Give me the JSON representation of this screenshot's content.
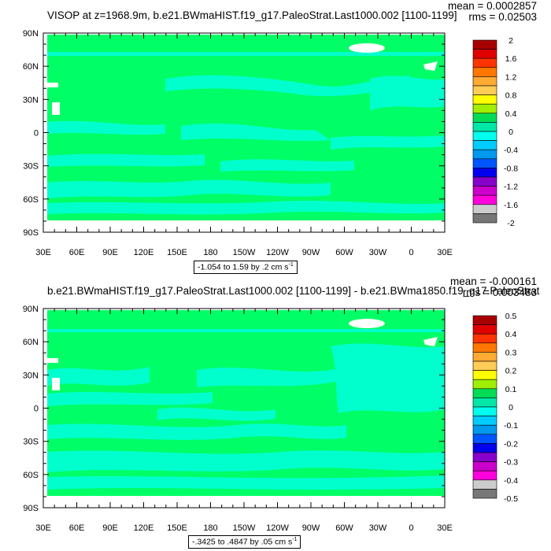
{
  "panels": [
    {
      "title": "VISOP at z=1968.9m, b.e21.BWmaHIST.f19_g17.PaleoStrat.Last1000.002 [1100-1199]",
      "mean_text": "mean = 0.0002857",
      "rms_text": "rms = 0.02503",
      "range_text": "-1.054 to 1.59 by .2 cm s",
      "range_sup": "-1",
      "colorbar_labels": [
        "2",
        "1.6",
        "1.2",
        "0.8",
        "0.4",
        "0",
        "-0.4",
        "-0.8",
        "-1.2",
        "-1.6",
        "-2"
      ]
    },
    {
      "title": "b.e21.BWmaHIST.f19_g17.PaleoStrat.Last1000.002 [1100-1199] - b.e21.BWma1850.f19_g17.PaleoStrat",
      "mean_text": "mean = -0.000161",
      "rms_text": "rms = 0.003483",
      "range_text": "-.3425 to .4847 by .05 cm s",
      "range_sup": "-1",
      "colorbar_labels": [
        "0.5",
        "0.4",
        "0.3",
        "0.2",
        "0.1",
        "0",
        "-0.1",
        "-0.2",
        "-0.3",
        "-0.4",
        "-0.5"
      ]
    }
  ],
  "lat_labels": [
    "90N",
    "60N",
    "30N",
    "0",
    "30S",
    "60S",
    "90S"
  ],
  "lon_labels": [
    "30E",
    "60E",
    "90E",
    "120E",
    "150E",
    "180",
    "150W",
    "120W",
    "90W",
    "60W",
    "30W",
    "0",
    "30E"
  ],
  "colorbar_colors": [
    "#a80000",
    "#e00000",
    "#ff3300",
    "#ff7700",
    "#ffaa33",
    "#ffcc55",
    "#ffff00",
    "#a0ee00",
    "#00dd55",
    "#00e8a8",
    "#00ffee",
    "#00ccff",
    "#0099ee",
    "#0055ff",
    "#0000ee",
    "#8800cc",
    "#cc00cc",
    "#ff00dd",
    "#cccccc",
    "#777777"
  ],
  "field_colors": {
    "ocean_main": "#00ff66",
    "ocean_alt": "#00ffcc",
    "no_data": "#ffffff"
  }
}
